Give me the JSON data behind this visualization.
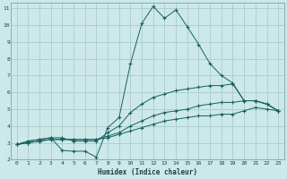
{
  "xlabel": "Humidex (Indice chaleur)",
  "bg_color": "#cce8e8",
  "grid_color": "#aacccc",
  "line_color": "#1a6060",
  "xlim": [
    -0.5,
    23.5
  ],
  "ylim": [
    2,
    11.3
  ],
  "xticks": [
    0,
    1,
    2,
    3,
    4,
    5,
    6,
    7,
    8,
    9,
    10,
    11,
    12,
    13,
    14,
    15,
    16,
    17,
    18,
    19,
    20,
    21,
    22,
    23
  ],
  "yticks": [
    2,
    3,
    4,
    5,
    6,
    7,
    8,
    9,
    10,
    11
  ],
  "series": {
    "line1": {
      "x": [
        0,
        1,
        2,
        3,
        4,
        5,
        6,
        7,
        8,
        9,
        10,
        11,
        12,
        13,
        14,
        15,
        16,
        17,
        18,
        19,
        20,
        21,
        22,
        23
      ],
      "y": [
        2.9,
        3.1,
        3.2,
        3.3,
        2.55,
        2.5,
        2.5,
        2.15,
        3.9,
        4.5,
        7.7,
        10.1,
        11.1,
        10.4,
        10.9,
        9.9,
        8.85,
        7.7,
        7.0,
        6.55,
        5.5,
        5.5,
        5.3,
        4.9
      ]
    },
    "line2": {
      "x": [
        0,
        1,
        2,
        3,
        4,
        5,
        6,
        7,
        8,
        9,
        10,
        11,
        12,
        13,
        14,
        15,
        16,
        17,
        18,
        19,
        20,
        21,
        22,
        23
      ],
      "y": [
        2.9,
        3.1,
        3.2,
        3.3,
        3.3,
        3.1,
        3.1,
        3.1,
        3.6,
        4.0,
        4.8,
        5.3,
        5.7,
        5.9,
        6.1,
        6.2,
        6.3,
        6.4,
        6.4,
        6.5,
        5.5,
        5.5,
        5.3,
        4.9
      ]
    },
    "line3": {
      "x": [
        0,
        1,
        2,
        3,
        4,
        5,
        6,
        7,
        8,
        9,
        10,
        11,
        12,
        13,
        14,
        15,
        16,
        17,
        18,
        19,
        20,
        21,
        22,
        23
      ],
      "y": [
        2.9,
        3.0,
        3.1,
        3.2,
        3.2,
        3.2,
        3.2,
        3.2,
        3.4,
        3.6,
        4.0,
        4.3,
        4.6,
        4.8,
        4.9,
        5.0,
        5.2,
        5.3,
        5.4,
        5.4,
        5.5,
        5.5,
        5.3,
        4.9
      ]
    },
    "line4": {
      "x": [
        0,
        1,
        2,
        3,
        4,
        5,
        6,
        7,
        8,
        9,
        10,
        11,
        12,
        13,
        14,
        15,
        16,
        17,
        18,
        19,
        20,
        21,
        22,
        23
      ],
      "y": [
        2.9,
        3.0,
        3.1,
        3.2,
        3.2,
        3.2,
        3.2,
        3.2,
        3.3,
        3.5,
        3.7,
        3.9,
        4.1,
        4.3,
        4.4,
        4.5,
        4.6,
        4.6,
        4.7,
        4.7,
        4.9,
        5.1,
        5.0,
        4.9
      ]
    }
  }
}
